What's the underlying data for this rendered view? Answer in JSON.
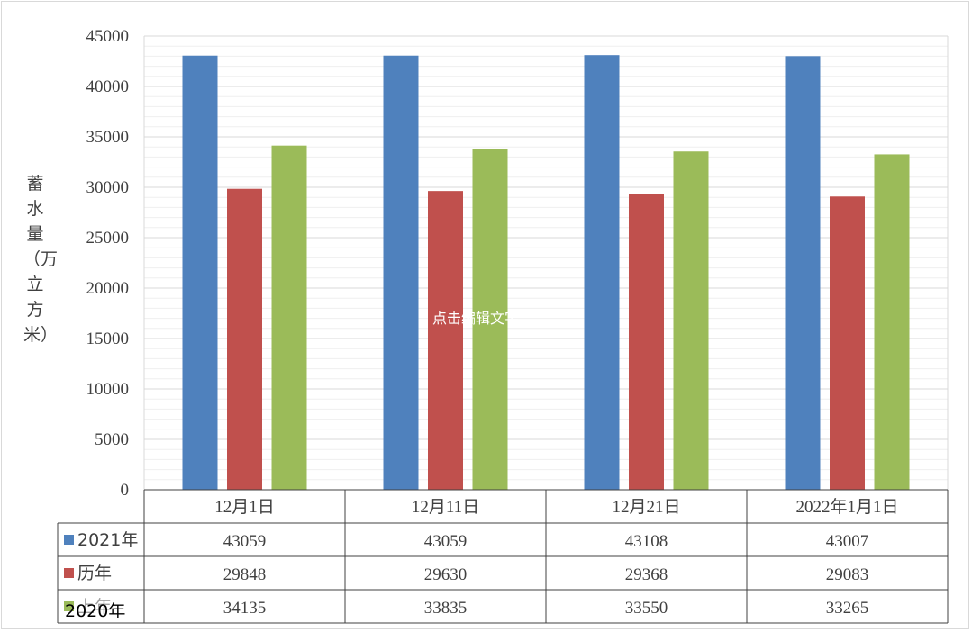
{
  "chart_data": {
    "type": "bar",
    "ylabel": "蓄水量（万立方米）",
    "ylim": [
      0,
      45000
    ],
    "yticks": [
      0,
      5000,
      10000,
      15000,
      20000,
      25000,
      30000,
      35000,
      40000,
      45000
    ],
    "categories": [
      "12月1日",
      "12月11日",
      "12月21日",
      "2022年1月1日"
    ],
    "grid": true,
    "legend_placement": "data-table",
    "series": [
      {
        "name": "2021年",
        "color": "#4F81BD",
        "values": [
          43059,
          43059,
          43108,
          43007
        ]
      },
      {
        "name": "历年",
        "color": "#C0504D",
        "values": [
          29848,
          29630,
          29368,
          29083
        ]
      },
      {
        "name": "上年",
        "color": "#9BBB59",
        "values": [
          34135,
          33835,
          33550,
          33265
        ]
      }
    ]
  },
  "overlay_text": "点击编辑文字",
  "legend_overflow_text": "2020年"
}
